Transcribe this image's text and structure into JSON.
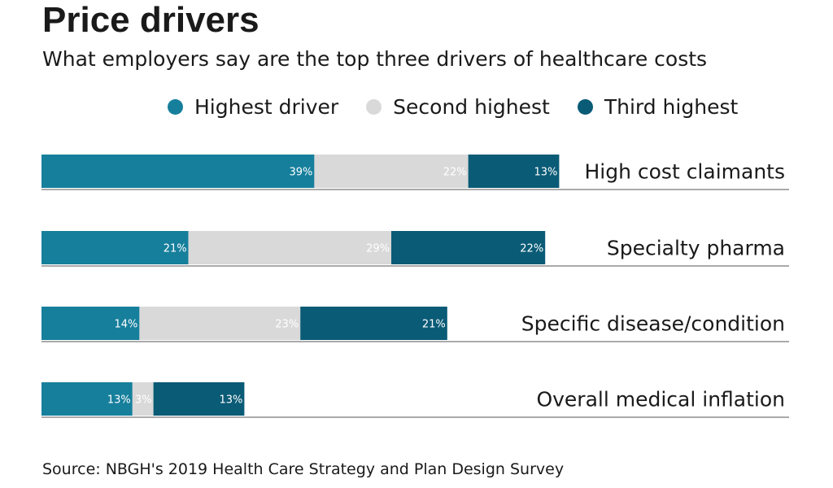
{
  "chart_data": {
    "type": "bar",
    "orientation": "horizontal",
    "stacked": true,
    "title": "Price drivers",
    "subtitle": "What employers say are the top three drivers of healthcare costs",
    "categories": [
      "High cost claimants",
      "Specialty pharma",
      "Specific disease/condition",
      "Overall medical inflation"
    ],
    "series": [
      {
        "name": "Highest driver",
        "values": [
          39,
          21,
          14,
          13
        ],
        "labels": [
          "39%",
          "21%",
          "14%",
          "13%"
        ]
      },
      {
        "name": "Second highest",
        "values": [
          22,
          29,
          23,
          3
        ],
        "labels": [
          "22%",
          "29%",
          "23%",
          "3%"
        ]
      },
      {
        "name": "Third highest",
        "values": [
          13,
          22,
          21,
          13
        ],
        "labels": [
          "13%",
          "22%",
          "21%",
          "13%"
        ]
      }
    ],
    "xlim": [
      0,
      100
    ],
    "grid": false,
    "legend_position": "top",
    "source": "Source: NBGH's 2019 Health Care Strategy and Plan Design Survey"
  },
  "colors": {
    "highest": "#167f9c",
    "second": "#d9d9d9",
    "third": "#0a5b76",
    "label_text": "#ffffff",
    "text": "#1a1a1a",
    "axis_line": "#555555"
  }
}
